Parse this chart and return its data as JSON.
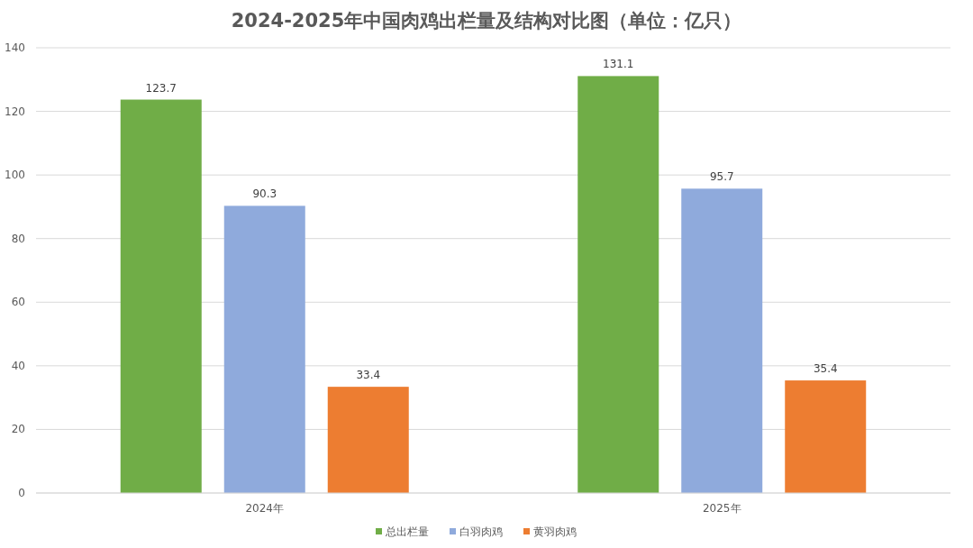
{
  "chart_data": {
    "type": "bar",
    "title": "2024-2025年中国肉鸡出栏量及结构对比图（单位：亿只）",
    "categories": [
      "2024年",
      "2025年"
    ],
    "series": [
      {
        "name": "总出栏量",
        "color": "#70ad47",
        "values": [
          123.7,
          131.1
        ]
      },
      {
        "name": "白羽肉鸡",
        "color": "#8faadc",
        "values": [
          90.3,
          95.7
        ]
      },
      {
        "name": "黄羽肉鸡",
        "color": "#ed7d31",
        "values": [
          33.4,
          35.4
        ]
      }
    ],
    "ylim": [
      0,
      140
    ],
    "yticks": [
      0,
      20,
      40,
      60,
      80,
      100,
      120,
      140
    ],
    "grid": "y",
    "legend": "bottom",
    "data_labels": true
  }
}
